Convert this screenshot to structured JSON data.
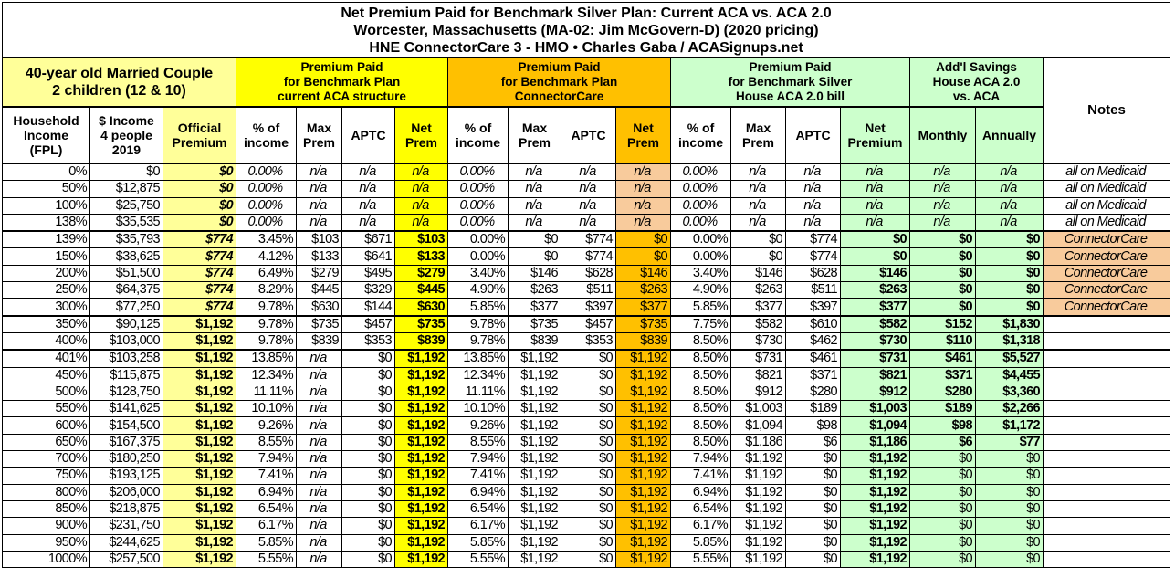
{
  "title_lines": [
    "Net Premium Paid for Benchmark Silver Plan: Current ACA vs. ACA 2.0",
    "Worcester, Massachusetts (MA-02: Jim McGovern-D) (2020 pricing)",
    "HNE ConnectorCare 3 - HMO • Charles Gaba / ACASignups.net"
  ],
  "groups": {
    "household": [
      "40-year old Married Couple",
      "2 children (12 & 10)"
    ],
    "aca": [
      "Premium Paid",
      "for Benchmark Plan",
      "current ACA structure"
    ],
    "cc": [
      "Premium Paid",
      "for Benchmark Plan",
      "ConnectorCare"
    ],
    "house": [
      "Premium Paid",
      "for Benchmark Silver",
      "House ACA 2.0 bill"
    ],
    "savings": [
      "Add'l Savings",
      "House ACA 2.0",
      "vs. ACA"
    ],
    "notes": "Notes"
  },
  "colors": {
    "light_yellow": "#ffff99",
    "yellow": "#ffff00",
    "orange": "#ffc000",
    "light_orange": "#f8cb9c",
    "green": "#ccffcc"
  },
  "chart_data": {
    "type": "table",
    "columns": [
      [
        "Household",
        "Income",
        "(FPL)"
      ],
      [
        "$ Income",
        "4 people",
        "2019"
      ],
      [
        "Official",
        "Premium"
      ],
      [
        "% of",
        "income"
      ],
      [
        "Max",
        "Prem"
      ],
      [
        "APTC"
      ],
      [
        "Net",
        "Prem"
      ],
      [
        "% of",
        "income"
      ],
      [
        "Max",
        "Prem"
      ],
      [
        "APTC"
      ],
      [
        "Net",
        "Prem"
      ],
      [
        "% of",
        "income"
      ],
      [
        "Max",
        "Prem"
      ],
      [
        "APTC"
      ],
      [
        "Net",
        "Premium"
      ],
      [
        "Monthly"
      ],
      [
        "Annually"
      ]
    ],
    "rows": [
      [
        "0%",
        "$0",
        "$0",
        "0.00%",
        "n/a",
        "n/a",
        "n/a",
        "0.00%",
        "n/a",
        "n/a",
        "n/a",
        "0.00%",
        "n/a",
        "n/a",
        "n/a",
        "n/a",
        "n/a",
        "all on Medicaid"
      ],
      [
        "50%",
        "$12,875",
        "$0",
        "0.00%",
        "n/a",
        "n/a",
        "n/a",
        "0.00%",
        "n/a",
        "n/a",
        "n/a",
        "0.00%",
        "n/a",
        "n/a",
        "n/a",
        "n/a",
        "n/a",
        "all on Medicaid"
      ],
      [
        "100%",
        "$25,750",
        "$0",
        "0.00%",
        "n/a",
        "n/a",
        "n/a",
        "0.00%",
        "n/a",
        "n/a",
        "n/a",
        "0.00%",
        "n/a",
        "n/a",
        "n/a",
        "n/a",
        "n/a",
        "all on Medicaid"
      ],
      [
        "138%",
        "$35,535",
        "$0",
        "0.00%",
        "n/a",
        "n/a",
        "n/a",
        "0.00%",
        "n/a",
        "n/a",
        "n/a",
        "0.00%",
        "n/a",
        "n/a",
        "n/a",
        "n/a",
        "n/a",
        "all on Medicaid"
      ],
      [
        "139%",
        "$35,793",
        "$774",
        "3.45%",
        "$103",
        "$671",
        "$103",
        "0.00%",
        "$0",
        "$774",
        "$0",
        "0.00%",
        "$0",
        "$774",
        "$0",
        "$0",
        "$0",
        "ConnectorCare"
      ],
      [
        "150%",
        "$38,625",
        "$774",
        "4.12%",
        "$133",
        "$641",
        "$133",
        "0.00%",
        "$0",
        "$774",
        "$0",
        "0.00%",
        "$0",
        "$774",
        "$0",
        "$0",
        "$0",
        "ConnectorCare"
      ],
      [
        "200%",
        "$51,500",
        "$774",
        "6.49%",
        "$279",
        "$495",
        "$279",
        "3.40%",
        "$146",
        "$628",
        "$146",
        "3.40%",
        "$146",
        "$628",
        "$146",
        "$0",
        "$0",
        "ConnectorCare"
      ],
      [
        "250%",
        "$64,375",
        "$774",
        "8.29%",
        "$445",
        "$329",
        "$445",
        "4.90%",
        "$263",
        "$511",
        "$263",
        "4.90%",
        "$263",
        "$511",
        "$263",
        "$0",
        "$0",
        "ConnectorCare"
      ],
      [
        "300%",
        "$77,250",
        "$774",
        "9.78%",
        "$630",
        "$144",
        "$630",
        "5.85%",
        "$377",
        "$397",
        "$377",
        "5.85%",
        "$377",
        "$397",
        "$377",
        "$0",
        "$0",
        "ConnectorCare"
      ],
      [
        "350%",
        "$90,125",
        "$1,192",
        "9.78%",
        "$735",
        "$457",
        "$735",
        "9.78%",
        "$735",
        "$457",
        "$735",
        "7.75%",
        "$582",
        "$610",
        "$582",
        "$152",
        "$1,830",
        ""
      ],
      [
        "400%",
        "$103,000",
        "$1,192",
        "9.78%",
        "$839",
        "$353",
        "$839",
        "9.78%",
        "$839",
        "$353",
        "$839",
        "8.50%",
        "$730",
        "$462",
        "$730",
        "$110",
        "$1,318",
        ""
      ],
      [
        "401%",
        "$103,258",
        "$1,192",
        "13.85%",
        "n/a",
        "$0",
        "$1,192",
        "13.85%",
        "$1,192",
        "$0",
        "$1,192",
        "8.50%",
        "$731",
        "$461",
        "$731",
        "$461",
        "$5,527",
        ""
      ],
      [
        "450%",
        "$115,875",
        "$1,192",
        "12.34%",
        "n/a",
        "$0",
        "$1,192",
        "12.34%",
        "$1,192",
        "$0",
        "$1,192",
        "8.50%",
        "$821",
        "$371",
        "$821",
        "$371",
        "$4,455",
        ""
      ],
      [
        "500%",
        "$128,750",
        "$1,192",
        "11.11%",
        "n/a",
        "$0",
        "$1,192",
        "11.11%",
        "$1,192",
        "$0",
        "$1,192",
        "8.50%",
        "$912",
        "$280",
        "$912",
        "$280",
        "$3,360",
        ""
      ],
      [
        "550%",
        "$141,625",
        "$1,192",
        "10.10%",
        "n/a",
        "$0",
        "$1,192",
        "10.10%",
        "$1,192",
        "$0",
        "$1,192",
        "8.50%",
        "$1,003",
        "$189",
        "$1,003",
        "$189",
        "$2,266",
        ""
      ],
      [
        "600%",
        "$154,500",
        "$1,192",
        "9.26%",
        "n/a",
        "$0",
        "$1,192",
        "9.26%",
        "$1,192",
        "$0",
        "$1,192",
        "8.50%",
        "$1,094",
        "$98",
        "$1,094",
        "$98",
        "$1,172",
        ""
      ],
      [
        "650%",
        "$167,375",
        "$1,192",
        "8.55%",
        "n/a",
        "$0",
        "$1,192",
        "8.55%",
        "$1,192",
        "$0",
        "$1,192",
        "8.50%",
        "$1,186",
        "$6",
        "$1,186",
        "$6",
        "$77",
        ""
      ],
      [
        "700%",
        "$180,250",
        "$1,192",
        "7.94%",
        "n/a",
        "$0",
        "$1,192",
        "7.94%",
        "$1,192",
        "$0",
        "$1,192",
        "7.94%",
        "$1,192",
        "$0",
        "$1,192",
        "$0",
        "$0",
        ""
      ],
      [
        "750%",
        "$193,125",
        "$1,192",
        "7.41%",
        "n/a",
        "$0",
        "$1,192",
        "7.41%",
        "$1,192",
        "$0",
        "$1,192",
        "7.41%",
        "$1,192",
        "$0",
        "$1,192",
        "$0",
        "$0",
        ""
      ],
      [
        "800%",
        "$206,000",
        "$1,192",
        "6.94%",
        "n/a",
        "$0",
        "$1,192",
        "6.94%",
        "$1,192",
        "$0",
        "$1,192",
        "6.94%",
        "$1,192",
        "$0",
        "$1,192",
        "$0",
        "$0",
        ""
      ],
      [
        "850%",
        "$218,875",
        "$1,192",
        "6.54%",
        "n/a",
        "$0",
        "$1,192",
        "6.54%",
        "$1,192",
        "$0",
        "$1,192",
        "6.54%",
        "$1,192",
        "$0",
        "$1,192",
        "$0",
        "$0",
        ""
      ],
      [
        "900%",
        "$231,750",
        "$1,192",
        "6.17%",
        "n/a",
        "$0",
        "$1,192",
        "6.17%",
        "$1,192",
        "$0",
        "$1,192",
        "6.17%",
        "$1,192",
        "$0",
        "$1,192",
        "$0",
        "$0",
        ""
      ],
      [
        "950%",
        "$244,625",
        "$1,192",
        "5.85%",
        "n/a",
        "$0",
        "$1,192",
        "5.85%",
        "$1,192",
        "$0",
        "$1,192",
        "5.85%",
        "$1,192",
        "$0",
        "$1,192",
        "$0",
        "$0",
        ""
      ],
      [
        "1000%",
        "$257,500",
        "$1,192",
        "5.55%",
        "n/a",
        "$0",
        "$1,192",
        "5.55%",
        "$1,192",
        "$0",
        "$1,192",
        "5.55%",
        "$1,192",
        "$0",
        "$1,192",
        "$0",
        "$0",
        ""
      ]
    ]
  }
}
